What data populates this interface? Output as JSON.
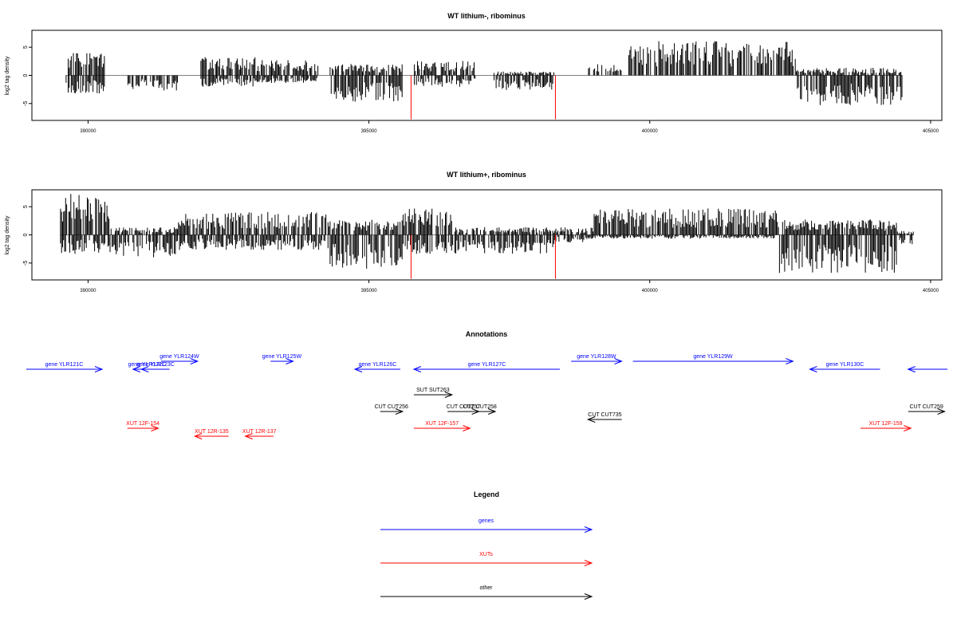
{
  "chart_data": [
    {
      "type": "bar",
      "title": "WT lithium-, ribominus",
      "ylabel": "log2 tag density",
      "xlim": [
        389000,
        405200
      ],
      "ylim": [
        -8,
        8
      ],
      "x_ticks": [
        390000,
        395000,
        400000,
        405000
      ],
      "x_tick_labels": [
        "390000",
        "395000",
        "400000",
        "405000"
      ],
      "y_ticks": [
        -5,
        0,
        5
      ],
      "y_tick_labels": [
        "-5",
        "0",
        "5"
      ],
      "bar_color": "#000000",
      "marker_color": "#ff0000",
      "segments": [
        {
          "start": 389600,
          "end": 390300,
          "plus": 3.0,
          "minus": -2.5
        },
        {
          "start": 390700,
          "end": 391600,
          "plus": 0.0,
          "minus": -2.0
        },
        {
          "start": 392000,
          "end": 393000,
          "plus": 2.5,
          "minus": -1.5
        },
        {
          "start": 393000,
          "end": 394100,
          "plus": 2.0,
          "minus": -1.0
        },
        {
          "start": 394300,
          "end": 395600,
          "plus": 1.5,
          "minus": -3.5
        },
        {
          "start": 395800,
          "end": 396900,
          "plus": 2.0,
          "minus": -1.5
        },
        {
          "start": 397200,
          "end": 398300,
          "plus": 0.5,
          "minus": -2.0
        },
        {
          "start": 398900,
          "end": 399500,
          "plus": 1.5,
          "minus": 0.0
        },
        {
          "start": 399600,
          "end": 402600,
          "plus": 4.5,
          "minus": 0.0
        },
        {
          "start": 402600,
          "end": 404500,
          "plus": 1.0,
          "minus": -4.0
        }
      ],
      "markers": [
        {
          "x": 395750,
          "y": -7.8
        },
        {
          "x": 398320,
          "y": -7.8
        }
      ]
    },
    {
      "type": "bar",
      "title": "WT lithium+, ribominus",
      "ylabel": "log2 tag density",
      "xlim": [
        389000,
        405200
      ],
      "ylim": [
        -8,
        8
      ],
      "x_ticks": [
        390000,
        395000,
        400000,
        405000
      ],
      "x_tick_labels": [
        "390000",
        "395000",
        "400000",
        "405000"
      ],
      "y_ticks": [
        -5,
        0,
        5
      ],
      "y_tick_labels": [
        "-5",
        "0",
        "5"
      ],
      "bar_color": "#000000",
      "marker_color": "#ff0000",
      "segments": [
        {
          "start": 389500,
          "end": 390400,
          "plus": 5.5,
          "minus": -2.5
        },
        {
          "start": 390400,
          "end": 391600,
          "plus": 1.0,
          "minus": -3.0
        },
        {
          "start": 391600,
          "end": 394300,
          "plus": 3.0,
          "minus": -2.0
        },
        {
          "start": 394300,
          "end": 395600,
          "plus": 2.0,
          "minus": -4.5
        },
        {
          "start": 395600,
          "end": 396500,
          "plus": 3.5,
          "minus": -2.5
        },
        {
          "start": 396500,
          "end": 398300,
          "plus": 1.0,
          "minus": -2.5
        },
        {
          "start": 398300,
          "end": 399000,
          "plus": 1.0,
          "minus": -1.0
        },
        {
          "start": 399000,
          "end": 402300,
          "plus": 3.5,
          "minus": -0.5
        },
        {
          "start": 402300,
          "end": 404400,
          "plus": 2.0,
          "minus": -5.0
        },
        {
          "start": 404400,
          "end": 404700,
          "plus": 0.5,
          "minus": -1.5
        }
      ],
      "markers": [
        {
          "x": 395750,
          "y": -7.8
        },
        {
          "x": 398320,
          "y": -7.8
        }
      ]
    }
  ],
  "annotations": {
    "title": "Annotations",
    "xlim": [
      389000,
      405200
    ],
    "colors": {
      "gene": "#0000ff",
      "XUT": "#ff0000",
      "other": "#000000"
    },
    "items": [
      {
        "label": "gene YLR121C",
        "start": 388900,
        "end": 390250,
        "strand": "+",
        "row": 2,
        "kind": "gene"
      },
      {
        "label": "gene YLR122C",
        "start": 390800,
        "end": 391300,
        "strand": "-",
        "row": 2,
        "kind": "gene"
      },
      {
        "label": "gene YLR123C",
        "start": 390950,
        "end": 391450,
        "strand": "-",
        "row": 2,
        "kind": "gene"
      },
      {
        "label": "gene YLR124W",
        "start": 391300,
        "end": 391950,
        "strand": "+",
        "row": 1,
        "kind": "gene"
      },
      {
        "label": "gene YLR125W",
        "start": 393250,
        "end": 393650,
        "strand": "+",
        "row": 1,
        "kind": "gene"
      },
      {
        "label": "gene YLR126C",
        "start": 394750,
        "end": 395560,
        "strand": "-",
        "row": 2,
        "kind": "gene"
      },
      {
        "label": "gene YLR127C",
        "start": 395800,
        "end": 398400,
        "strand": "-",
        "row": 2,
        "kind": "gene"
      },
      {
        "label": "gene YLR128W",
        "start": 398600,
        "end": 399500,
        "strand": "+",
        "row": 1,
        "kind": "gene"
      },
      {
        "label": "gene YLR129W",
        "start": 399700,
        "end": 402550,
        "strand": "+",
        "row": 1,
        "kind": "gene"
      },
      {
        "label": "gene YLR130C",
        "start": 402850,
        "end": 404100,
        "strand": "-",
        "row": 2,
        "kind": "gene"
      },
      {
        "label": "",
        "start": 404600,
        "end": 405300,
        "strand": "-",
        "row": 2,
        "kind": "gene"
      },
      {
        "label": "SUT SUT263",
        "start": 395800,
        "end": 396480,
        "strand": "+",
        "row": 3,
        "kind": "other"
      },
      {
        "label": "CUT CUT256",
        "start": 395200,
        "end": 395600,
        "strand": "+",
        "row": 4,
        "kind": "other"
      },
      {
        "label": "CUT CUT257",
        "start": 396400,
        "end": 396960,
        "strand": "+",
        "row": 4,
        "kind": "other"
      },
      {
        "label": "CUT CUT258",
        "start": 396700,
        "end": 397250,
        "strand": "+",
        "row": 4,
        "kind": "other"
      },
      {
        "label": "CUT CUT735",
        "start": 398900,
        "end": 399500,
        "strand": "-",
        "row": 5,
        "kind": "other"
      },
      {
        "label": "CUT CUT259",
        "start": 404600,
        "end": 405250,
        "strand": "+",
        "row": 4,
        "kind": "other"
      },
      {
        "label": "XUT 12F-154",
        "start": 390700,
        "end": 391250,
        "strand": "+",
        "row": 6,
        "kind": "XUT"
      },
      {
        "label": "XUT 12R-135",
        "start": 391900,
        "end": 392500,
        "strand": "-",
        "row": 7,
        "kind": "XUT"
      },
      {
        "label": "XUT 12R-137",
        "start": 392800,
        "end": 393300,
        "strand": "-",
        "row": 7,
        "kind": "XUT"
      },
      {
        "label": "XUT 12F-157",
        "start": 395800,
        "end": 396800,
        "strand": "+",
        "row": 6,
        "kind": "XUT"
      },
      {
        "label": "XUT 12F-159",
        "start": 403750,
        "end": 404650,
        "strand": "+",
        "row": 6,
        "kind": "XUT"
      }
    ]
  },
  "legend": {
    "title": "Legend",
    "entries": [
      {
        "label": "genes",
        "color": "#0000ff"
      },
      {
        "label": "XUTs",
        "color": "#ff0000"
      },
      {
        "label": "other",
        "color": "#000000"
      }
    ]
  }
}
